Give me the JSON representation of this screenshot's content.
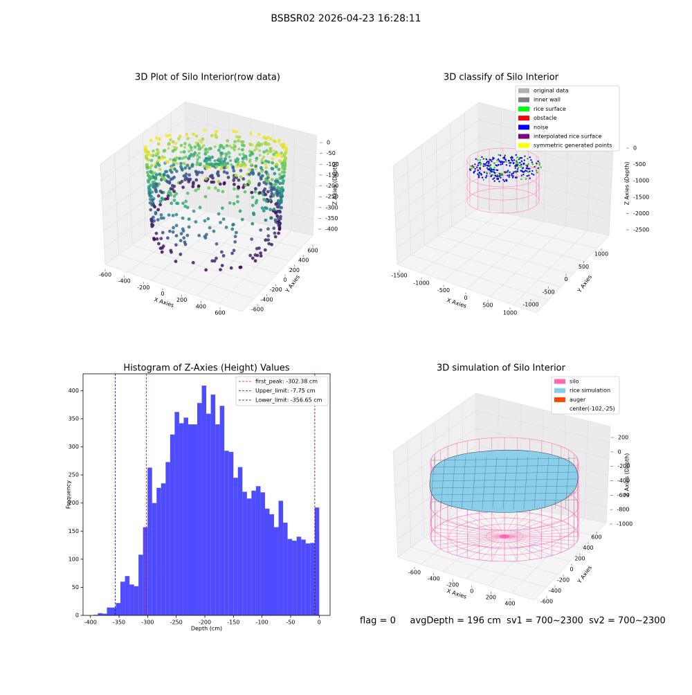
{
  "suptitle": "BSBSR02 2026-04-23 16:28:11",
  "footer": "flag = 0     avgDepth = 196 cm  sv1 = 700~2300  sv2 = 700~2300",
  "chart_data": [
    {
      "type": "scatter3d",
      "title": "3D Plot of Silo Interior(row data)",
      "x_label": "X Axies",
      "y_label": "Y Axies",
      "z_label": "Z Axies (Depth)",
      "xticks": [
        -600,
        -400,
        -200,
        0,
        200,
        400,
        600
      ],
      "yticks": [
        -600,
        -400,
        -200,
        0,
        200,
        400,
        600
      ],
      "zticks": [
        0,
        -50,
        -100,
        -150,
        -200,
        -250,
        -300,
        -350,
        -400
      ]
    },
    {
      "type": "scatter3d",
      "title": "3D classify of Silo Interior",
      "x_label": "X Axies",
      "y_label": "Y Axies",
      "z_label": "Z Axies (Depth)",
      "xticks": [
        -1500,
        -1000,
        -500,
        0,
        500,
        1000
      ],
      "yticks": [
        -1000,
        -500,
        0,
        500,
        1000
      ],
      "zticks": [
        0,
        -500,
        -1000,
        -1500,
        -2000,
        -2500
      ],
      "legend": [
        {
          "name": "original data",
          "color": "#b0b0b0"
        },
        {
          "name": "inner wall",
          "color": "#808080"
        },
        {
          "name": "rice surface",
          "color": "#00ff00"
        },
        {
          "name": "obstacle",
          "color": "#ff0000"
        },
        {
          "name": "noise",
          "color": "#0000ff"
        },
        {
          "name": "interpolated rice surface",
          "color": "#800080"
        },
        {
          "name": "symmetric generated points",
          "color": "#ffff00"
        }
      ]
    },
    {
      "type": "histogram",
      "title": "Histogram of Z-Axies (Height) Values",
      "x_label": "Depth (cm)",
      "y_label": "Frequency",
      "color": "#4d4dff",
      "bins": [
        -395,
        -387.1,
        -379.2,
        -371.3,
        -363.4,
        -355.5,
        -347.6,
        -339.7,
        -331.8,
        -323.9,
        -316,
        -308.1,
        -300.2,
        -292.3,
        -284.4,
        -276.5,
        -268.6,
        -260.7,
        -252.8,
        -244.9,
        -237,
        -229.1,
        -221.2,
        -213.3,
        -205.4,
        -197.5,
        -189.6,
        -181.7,
        -173.8,
        -165.9,
        -158,
        -150.1,
        -142.2,
        -134.3,
        -126.4,
        -118.5,
        -110.6,
        -102.7,
        -94.8,
        -86.9,
        -79,
        -71.1,
        -63.2,
        -55.3,
        -47.4,
        -39.5,
        -31.6,
        -23.7,
        -15.8,
        -7.9,
        0
      ],
      "values": [
        1,
        4,
        3,
        14,
        14,
        22,
        60,
        70,
        55,
        52,
        108,
        157,
        263,
        200,
        227,
        235,
        273,
        322,
        362,
        342,
        352,
        340,
        340,
        378,
        409,
        359,
        393,
        340,
        373,
        293,
        291,
        245,
        264,
        220,
        208,
        222,
        230,
        219,
        190,
        180,
        157,
        204,
        165,
        136,
        133,
        140,
        135,
        128,
        129,
        192
      ],
      "xlim": [
        -413,
        19
      ],
      "ylim": [
        0,
        430
      ],
      "xticks": [
        -400,
        -350,
        -300,
        -250,
        -200,
        -150,
        -100,
        -50,
        0
      ],
      "yticks": [
        0,
        50,
        100,
        150,
        200,
        250,
        300,
        350,
        400
      ],
      "vlines": [
        {
          "name": "first_peak: -302.38 cm",
          "value": -302.38,
          "color": "#ff0000"
        },
        {
          "name": "Upper_limit: -7.75 cm",
          "value": -7.75,
          "color": "#8b0000"
        },
        {
          "name": "Lower_limit: -356.65 cm",
          "value": -356.65,
          "color": "#0000cd"
        }
      ]
    },
    {
      "type": "surface3d",
      "title": "3D simulation of Silo Interior",
      "x_label": "X Axies",
      "y_label": "Y Axies",
      "z_label": "Z Axies (Depth)",
      "xticks": [
        -600,
        -400,
        -200,
        0,
        200,
        400
      ],
      "yticks": [
        -600,
        -400,
        -200,
        0,
        200,
        400,
        600
      ],
      "zticks": [
        200,
        0,
        -200,
        -400,
        -600,
        -800,
        -1000
      ],
      "legend": [
        {
          "name": "silo",
          "color": "#ff69b4"
        },
        {
          "name": "rice simulation",
          "color": "#87ceeb"
        },
        {
          "name": "auger",
          "color": "#ff4500"
        },
        {
          "name": "center(-102,-25)",
          "color": null
        }
      ]
    }
  ]
}
